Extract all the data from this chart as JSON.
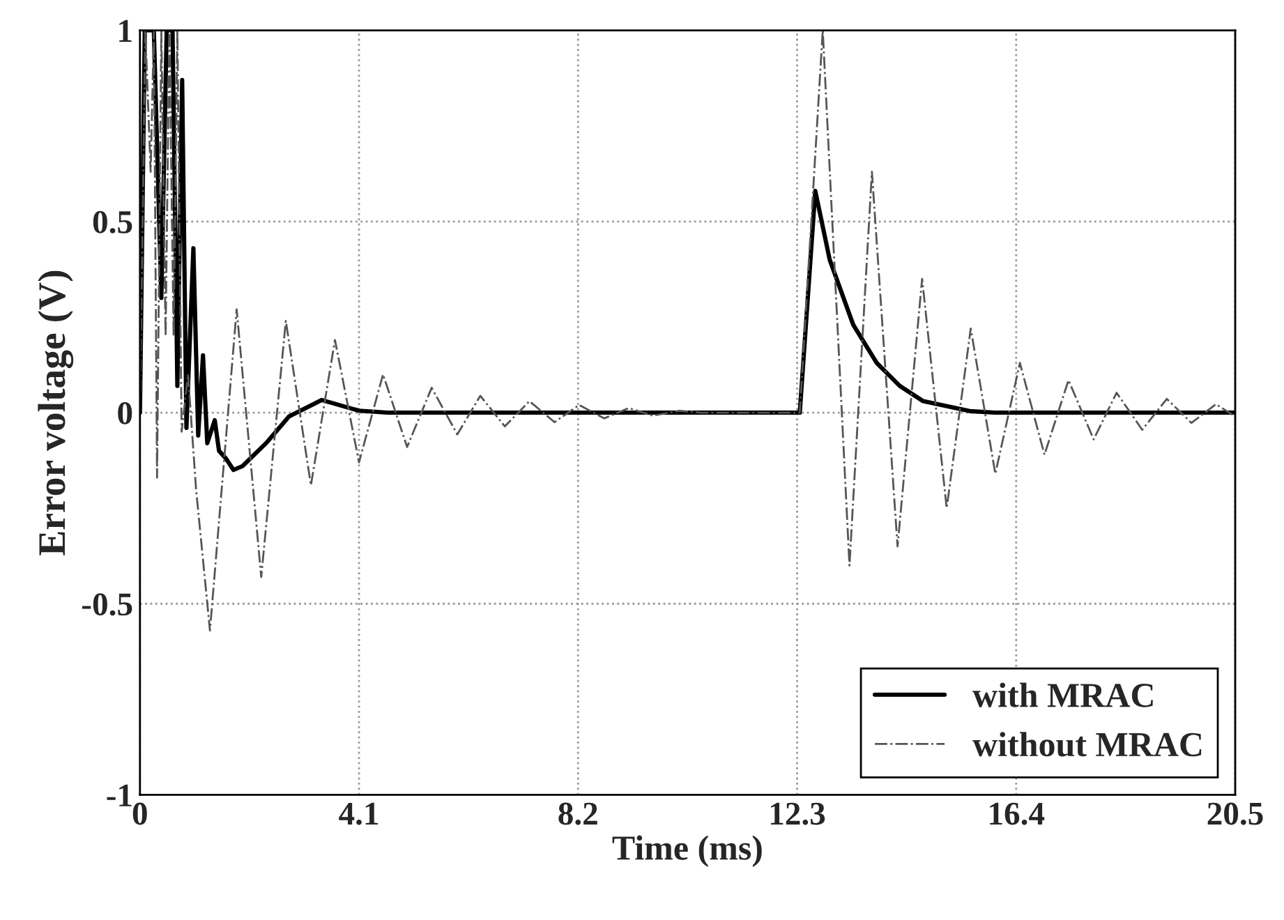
{
  "chart_data": {
    "type": "line",
    "xlabel": "Time (ms)",
    "ylabel": "Error voltage (V)",
    "xlim": [
      0,
      20.5
    ],
    "ylim": [
      -1,
      1
    ],
    "xticks": [
      0,
      4.1,
      8.2,
      12.3,
      16.4,
      20.5
    ],
    "yticks": [
      -1,
      -0.5,
      0,
      0.5,
      1
    ],
    "grid": true,
    "legend": "bottom right",
    "marker": "none",
    "series": [
      {
        "name": "with MRAC",
        "color": "#000000",
        "line_style": "solid",
        "x": [
          0,
          0.09,
          0.26,
          0.4,
          0.5,
          0.61,
          0.7,
          0.79,
          0.87,
          1.0,
          1.09,
          1.18,
          1.26,
          1.4,
          1.48,
          1.61,
          1.75,
          1.92,
          2.36,
          2.79,
          3.4,
          4.1,
          4.63,
          12.3,
          12.35,
          12.64,
          12.91,
          13.35,
          13.79,
          14.22,
          14.66,
          15.53,
          16.0,
          20.5
        ],
        "values": [
          0,
          1,
          1,
          0.3,
          1,
          1,
          0.07,
          0.87,
          -0.04,
          0.43,
          -0.06,
          0.15,
          -0.08,
          -0.02,
          -0.1,
          -0.12,
          -0.15,
          -0.14,
          -0.08,
          -0.01,
          0.033,
          0.005,
          0,
          0,
          0,
          0.58,
          0.4,
          0.23,
          0.13,
          0.07,
          0.03,
          0.004,
          0,
          0
        ]
      },
      {
        "name": "without MRAC",
        "color": "#555555",
        "line_style": "dashed",
        "x": [
          0,
          0.1,
          0.2,
          0.26,
          0.32,
          0.4,
          0.48,
          0.55,
          0.63,
          0.7,
          0.78,
          0.9,
          1.05,
          1.31,
          1.81,
          2.27,
          2.73,
          3.2,
          3.65,
          4.1,
          4.55,
          5.0,
          5.46,
          5.94,
          6.37,
          6.83,
          7.29,
          7.76,
          8.22,
          8.69,
          9.15,
          9.6,
          10.1,
          10.5,
          12.3,
          12.35,
          12.78,
          13.28,
          13.7,
          14.18,
          14.64,
          15.1,
          15.55,
          16.01,
          16.47,
          16.93,
          17.38,
          17.85,
          18.28,
          18.76,
          19.22,
          19.68,
          20.14,
          20.5
        ],
        "values": [
          0,
          1,
          0.63,
          1,
          -0.17,
          1,
          0.2,
          1,
          0.2,
          1,
          -0.05,
          0.1,
          -0.2,
          -0.57,
          0.27,
          -0.43,
          0.24,
          -0.19,
          0.19,
          -0.13,
          0.1,
          -0.09,
          0.065,
          -0.057,
          0.044,
          -0.036,
          0.03,
          -0.025,
          0.02,
          -0.015,
          0.012,
          -0.008,
          0.005,
          0,
          0,
          0,
          1,
          -0.4,
          0.63,
          -0.35,
          0.35,
          -0.25,
          0.22,
          -0.16,
          0.13,
          -0.11,
          0.085,
          -0.07,
          0.052,
          -0.045,
          0.036,
          -0.027,
          0.022,
          -0.01
        ]
      }
    ]
  }
}
